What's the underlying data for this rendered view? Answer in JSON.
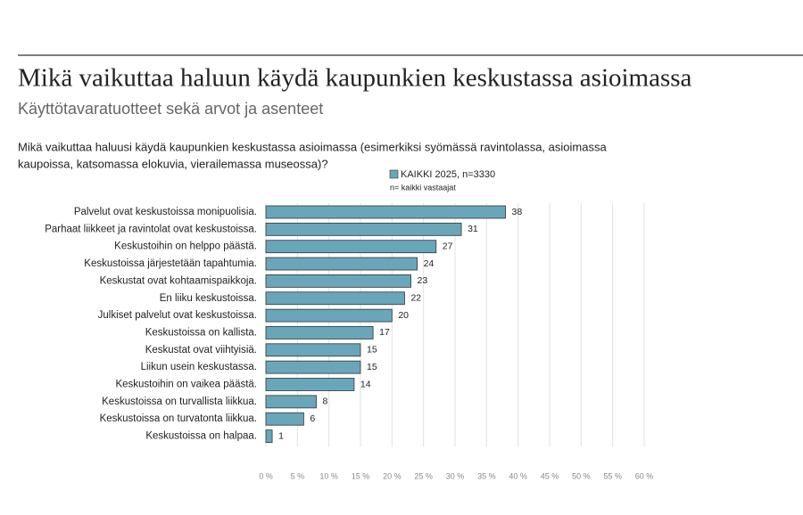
{
  "header": {
    "title": "Mikä vaikuttaa haluun käydä kaupunkien keskustassa asioimassa",
    "subtitle": "Käyttötavaratuotteet sekä arvot ja asenteet"
  },
  "chart_data": {
    "type": "bar",
    "orientation": "horizontal",
    "title": [
      "Mikä vaikuttaa haluusi käydä kaupunkien keskustassa asioimassa (esimerkiksi syömässä ravintolassa, asioimassa",
      "kaupoissa, katsomassa elokuvia, vierailemassa museossa)?"
    ],
    "note": "n= kaikki vastaajat",
    "categories": [
      "Palvelut ovat keskustoissa monipuolisia.",
      "Parhaat liikkeet ja ravintolat ovat keskustoissa.",
      "Keskustoihin on helppo päästä.",
      "Keskustoissa järjestetään tapahtumia.",
      "Keskustat ovat kohtaamispaikkoja.",
      "En liiku keskustoissa.",
      "Julkiset palvelut ovat keskustoissa.",
      "Keskustoissa on kallista.",
      "Keskustat ovat viihtyisiä.",
      "Liikun usein keskustassa.",
      "Keskustoihin on vaikea päästä.",
      "Keskustoissa on turvallista liikkua.",
      "Keskustoissa on turvatonta liikkua.",
      "Keskustoissa on halpaa."
    ],
    "series": [
      {
        "name": "KAIKKI 2025, n=3330",
        "color": "#6aa6ba",
        "values": [
          38,
          31,
          27,
          24,
          23,
          22,
          20,
          17,
          15,
          15,
          14,
          8,
          6,
          1
        ]
      }
    ],
    "xlim": [
      0,
      60
    ],
    "xticks": [
      {
        "value": 0,
        "label": "0 %"
      },
      {
        "value": 5,
        "label": "5 %"
      },
      {
        "value": 10,
        "label": "10 %"
      },
      {
        "value": 15,
        "label": "15 %"
      },
      {
        "value": 20,
        "label": "20 %"
      },
      {
        "value": 25,
        "label": "25 %"
      },
      {
        "value": 30,
        "label": "30 %"
      },
      {
        "value": 35,
        "label": "35 %"
      },
      {
        "value": 40,
        "label": "40 %"
      },
      {
        "value": 45,
        "label": "45 %"
      },
      {
        "value": 50,
        "label": "50 %"
      },
      {
        "value": 55,
        "label": "55 %"
      },
      {
        "value": 60,
        "label": "60 %"
      }
    ],
    "grid": true
  }
}
